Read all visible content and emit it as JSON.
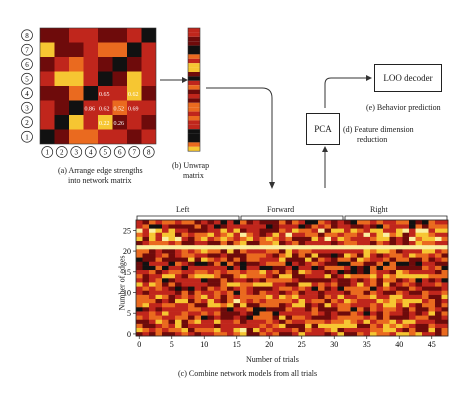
{
  "matrix": {
    "node_labels": [
      "1",
      "2",
      "3",
      "4",
      "5",
      "6",
      "7",
      "8"
    ],
    "visible_values": {
      "r3": [
        "0.65",
        "0.62"
      ],
      "r4": [
        "0.86",
        "0.62",
        "0.52",
        "0.69"
      ],
      "r5": [
        "0.22",
        "0.26"
      ]
    },
    "caption_line1": "(a) Arrange edge strengths",
    "caption_line2": "into network matrix"
  },
  "unwrap": {
    "caption_line1": "(b) Unwrap",
    "caption_line2": "matrix"
  },
  "pca": {
    "box_label": "PCA",
    "caption_line1": "(d) Feature dimension",
    "caption_line2": "reduction"
  },
  "decoder": {
    "box_label": "LOO decoder",
    "caption": "(e) Behavior prediction"
  },
  "heatmap": {
    "group_labels": [
      "Left",
      "Forward",
      "Right"
    ],
    "xlabel": "Number of trials",
    "ylabel": "Number of edges",
    "x_ticks": [
      "0",
      "5",
      "10",
      "15",
      "20",
      "25",
      "30",
      "35",
      "40",
      "45"
    ],
    "y_ticks": [
      "0",
      "5",
      "10",
      "15",
      "20",
      "25"
    ],
    "caption": "(c) Combine network models from all trials"
  },
  "colors": {
    "black": "#111111",
    "darkred": "#6e0b0b",
    "red": "#c0261c",
    "orange": "#ea6a1f",
    "yellow": "#f6c632",
    "pale": "#fbf0a0",
    "line": "#333333"
  }
}
